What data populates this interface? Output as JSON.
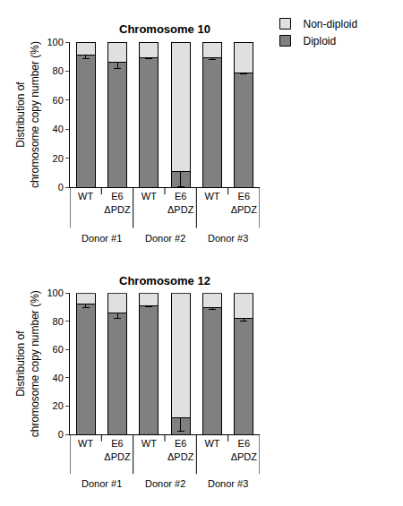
{
  "chart_data": [
    {
      "type": "bar",
      "title": "Chromosome 10",
      "categories": [
        "WT",
        "E6 ΔPDZ",
        "WT",
        "E6 ΔPDZ",
        "WT",
        "E6 ΔPDZ"
      ],
      "groups": [
        "Donor #1",
        "Donor #1",
        "Donor #2",
        "Donor #2",
        "Donor #3",
        "Donor #3"
      ],
      "y_label": "Distribution of chromosome copy number (%)",
      "ylim": [
        0,
        100
      ],
      "yticks": [
        0,
        20,
        40,
        60,
        80,
        100
      ],
      "stacked": true,
      "legend": "upper right",
      "series": [
        {
          "name": "Diploid",
          "color": "#808080",
          "values": [
            91,
            86,
            89,
            11,
            89,
            79
          ],
          "errors": [
            2.5,
            4,
            0.5,
            10.5,
            1,
            1
          ]
        },
        {
          "name": "Non-diploid",
          "color": "#e0e0e0",
          "values": [
            9,
            14,
            11,
            89,
            11,
            21
          ]
        }
      ]
    },
    {
      "type": "bar",
      "title": "Chromosome 12",
      "categories": [
        "WT",
        "E6 ΔPDZ",
        "WT",
        "E6 ΔPDZ",
        "WT",
        "E6 ΔPDZ"
      ],
      "groups": [
        "Donor #1",
        "Donor #1",
        "Donor #2",
        "Donor #2",
        "Donor #3",
        "Donor #3"
      ],
      "y_label": "Distribution of chromosome copy number (%)",
      "ylim": [
        0,
        100
      ],
      "yticks": [
        0,
        20,
        40,
        60,
        80,
        100
      ],
      "stacked": true,
      "series": [
        {
          "name": "Diploid",
          "color": "#808080",
          "values": [
            92,
            86,
            91,
            12,
            90,
            82
          ],
          "errors": [
            2,
            4,
            0.5,
            10,
            1.5,
            2
          ]
        },
        {
          "name": "Non-diploid",
          "color": "#e0e0e0",
          "values": [
            8,
            14,
            9,
            88,
            10,
            18
          ]
        }
      ]
    }
  ]
}
